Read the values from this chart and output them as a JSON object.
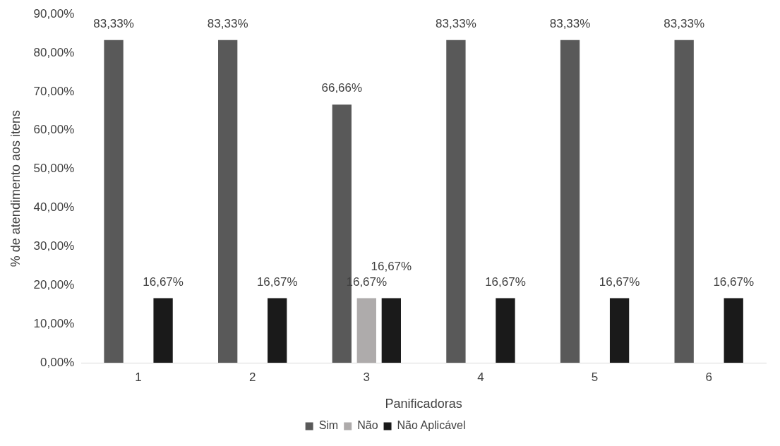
{
  "chart_data": {
    "type": "bar",
    "xlabel": "Panificadoras",
    "ylabel": "% de atendimento aos itens",
    "categories": [
      "1",
      "2",
      "3",
      "4",
      "5",
      "6"
    ],
    "series": [
      {
        "name": "Sim",
        "color": "#595959",
        "values": [
          83.33,
          83.33,
          66.66,
          83.33,
          83.33,
          83.33
        ],
        "value_labels": [
          "83,33%",
          "83,33%",
          "66,66%",
          "83,33%",
          "83,33%",
          "83,33%"
        ]
      },
      {
        "name": "Não",
        "color": "#aeabab",
        "values": [
          null,
          null,
          16.67,
          null,
          null,
          null
        ],
        "value_labels": [
          null,
          null,
          "16,67%",
          null,
          null,
          null
        ]
      },
      {
        "name": "Não Aplicável",
        "color": "#1a1a1a",
        "values": [
          16.67,
          16.67,
          16.67,
          16.67,
          16.67,
          16.67
        ],
        "value_labels": [
          "16,67%",
          "16,67%",
          "16,67%",
          "16,67%",
          "16,67%",
          "16,67%"
        ]
      }
    ],
    "ylim": [
      0,
      90
    ],
    "yticks": [
      {
        "value": 0,
        "label": "0,00%"
      },
      {
        "value": 10,
        "label": "10,00%"
      },
      {
        "value": 20,
        "label": "20,00%"
      },
      {
        "value": 30,
        "label": "30,00%"
      },
      {
        "value": 40,
        "label": "40,00%"
      },
      {
        "value": 50,
        "label": "50,00%"
      },
      {
        "value": 60,
        "label": "60,00%"
      },
      {
        "value": 70,
        "label": "70,00%"
      },
      {
        "value": 80,
        "label": "80,00%"
      },
      {
        "value": 90,
        "label": "90,00%"
      }
    ],
    "grid": false,
    "legend": "bottom"
  }
}
